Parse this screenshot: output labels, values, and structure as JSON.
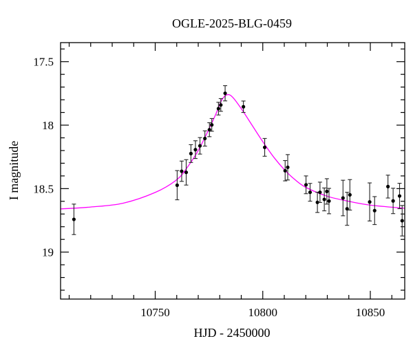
{
  "chart_data": {
    "type": "scatter",
    "title": "OGLE-2025-BLG-0459",
    "xlabel": "HJD - 2450000",
    "ylabel": "I magnitude",
    "xlim": [
      10706,
      10866
    ],
    "ylim": [
      19.37,
      17.35
    ],
    "y_inverted": true,
    "grid": false,
    "xticks": [
      10750,
      10800,
      10850
    ],
    "xtick_labels": [
      "10750",
      "10800",
      "10850"
    ],
    "yticks": [
      17.5,
      18,
      18.5,
      19
    ],
    "ytick_labels": [
      "17.5",
      "18",
      "18.5",
      "19"
    ],
    "colors": {
      "points": "#000000",
      "model": "#ff00ff"
    },
    "series": [
      {
        "kind": "points-with-errorbars",
        "x": [
          10712.2,
          10760.2,
          10762.3,
          10764.4,
          10766.6,
          10768.7,
          10770.8,
          10773.1,
          10775.2,
          10776.3,
          10779.4,
          10780.5,
          10782.5,
          10791.0,
          10800.9,
          10810.4,
          10811.6,
          10820.1,
          10822.0,
          10825.4,
          10826.6,
          10828.6,
          10829.8,
          10830.8,
          10837.3,
          10839.2,
          10840.5,
          10849.7,
          10852.0,
          10858.2,
          10860.6,
          10863.6,
          10864.8
        ],
        "y": [
          18.742,
          18.473,
          18.363,
          18.372,
          18.224,
          18.193,
          18.163,
          18.105,
          18.036,
          17.998,
          17.87,
          17.841,
          17.749,
          17.855,
          18.175,
          18.359,
          18.332,
          18.47,
          18.529,
          18.608,
          18.529,
          18.585,
          18.522,
          18.598,
          18.574,
          18.659,
          18.549,
          18.605,
          18.673,
          18.484,
          18.597,
          18.558,
          18.753
        ],
        "yerr": [
          0.12,
          0.115,
          0.08,
          0.1,
          0.07,
          0.07,
          0.065,
          0.06,
          0.055,
          0.05,
          0.05,
          0.05,
          0.06,
          0.045,
          0.07,
          0.08,
          0.1,
          0.07,
          0.07,
          0.08,
          0.08,
          0.09,
          0.1,
          0.1,
          0.14,
          0.13,
          0.12,
          0.15,
          0.11,
          0.09,
          0.1,
          0.1,
          0.12
        ]
      },
      {
        "kind": "model-curve",
        "x": [
          10706,
          10720,
          10735,
          10750,
          10760,
          10765,
          10770,
          10775,
          10778,
          10781,
          10783.5,
          10786,
          10790,
          10795,
          10800,
          10805,
          10810,
          10815,
          10820,
          10830,
          10840,
          10850,
          10866
        ],
        "y": [
          18.66,
          18.645,
          18.615,
          18.53,
          18.43,
          18.33,
          18.2,
          18.03,
          17.92,
          17.8,
          17.76,
          17.78,
          17.87,
          18.0,
          18.13,
          18.25,
          18.35,
          18.43,
          18.49,
          18.56,
          18.6,
          18.63,
          18.655
        ]
      }
    ]
  }
}
